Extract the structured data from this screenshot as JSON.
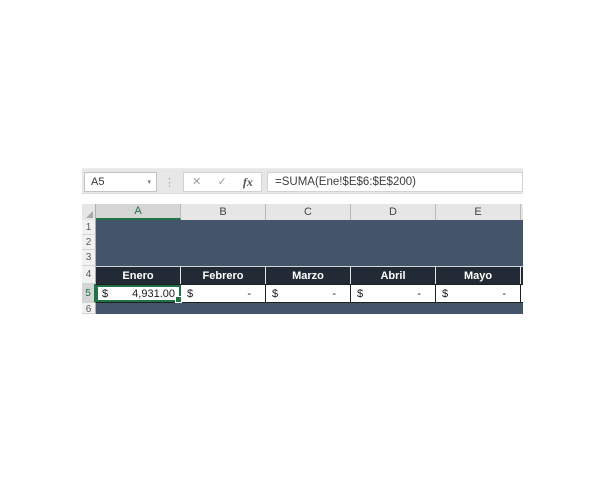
{
  "formula_bar": {
    "name_box_value": "A5",
    "name_box_dropdown_icon": "▾",
    "gripper_icon": "⋮",
    "cancel_label": "✕",
    "enter_label": "✓",
    "insert_function_label": "fx",
    "formula": "=SUMA(Ene!$E$6:$E$200)"
  },
  "grid": {
    "active_cell": "A5",
    "active_column": "A",
    "active_row": "5",
    "column_headers": [
      "A",
      "B",
      "C",
      "D",
      "E"
    ],
    "row_numbers": [
      "1",
      "2",
      "3",
      "4",
      "5",
      "6"
    ],
    "month_header_row": [
      "Enero",
      "Febrero",
      "Marzo",
      "Abril",
      "Mayo"
    ],
    "value_row": [
      {
        "currency": "$",
        "amount": "4,931.00"
      },
      {
        "currency": "$",
        "amount": "-"
      },
      {
        "currency": "$",
        "amount": "-"
      },
      {
        "currency": "$",
        "amount": "-"
      },
      {
        "currency": "$",
        "amount": "-"
      }
    ]
  },
  "colors": {
    "accent_green": "#217346",
    "navy_fill": "#44546A",
    "dark_navy_fill": "#222B35",
    "header_gray": "#E6E6E6",
    "selected_header_gray": "#D5D5D5",
    "formula_strip_gray": "#E7E7E7"
  }
}
